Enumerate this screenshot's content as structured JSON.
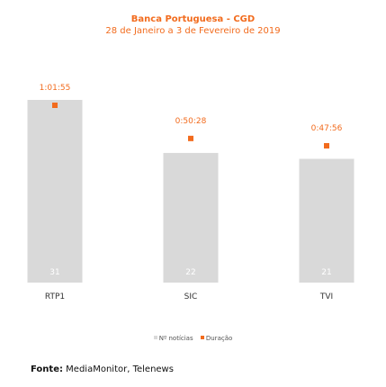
{
  "chart_data": {
    "type": "bar",
    "title": "Banca Portuguesa - CGD",
    "subtitle": "28 de Janeiro a 3 de Fevereiro de 2019",
    "categories": [
      "RTP1",
      "SIC",
      "TVI"
    ],
    "series": [
      {
        "name": "Nº notícias",
        "kind": "bar",
        "values": [
          31,
          22,
          21
        ],
        "color": "#d9d9d9"
      },
      {
        "name": "Duração",
        "kind": "marker",
        "values": [
          "1:01:55",
          "0:50:28",
          "0:47:56"
        ],
        "seconds": [
          3715,
          3028,
          2876
        ],
        "color": "#f26b1d"
      }
    ],
    "ylim": [
      0,
      31
    ],
    "grid": false,
    "legend_position": "bottom-center"
  },
  "colors": {
    "title": "#f26b1d",
    "bar": "#d9d9d9",
    "bar_label": "#ffffff",
    "marker": "#f26b1d",
    "axis_label": "#333333"
  },
  "source": {
    "label": "Fonte:",
    "text": "MediaMonitor, Telenews"
  }
}
